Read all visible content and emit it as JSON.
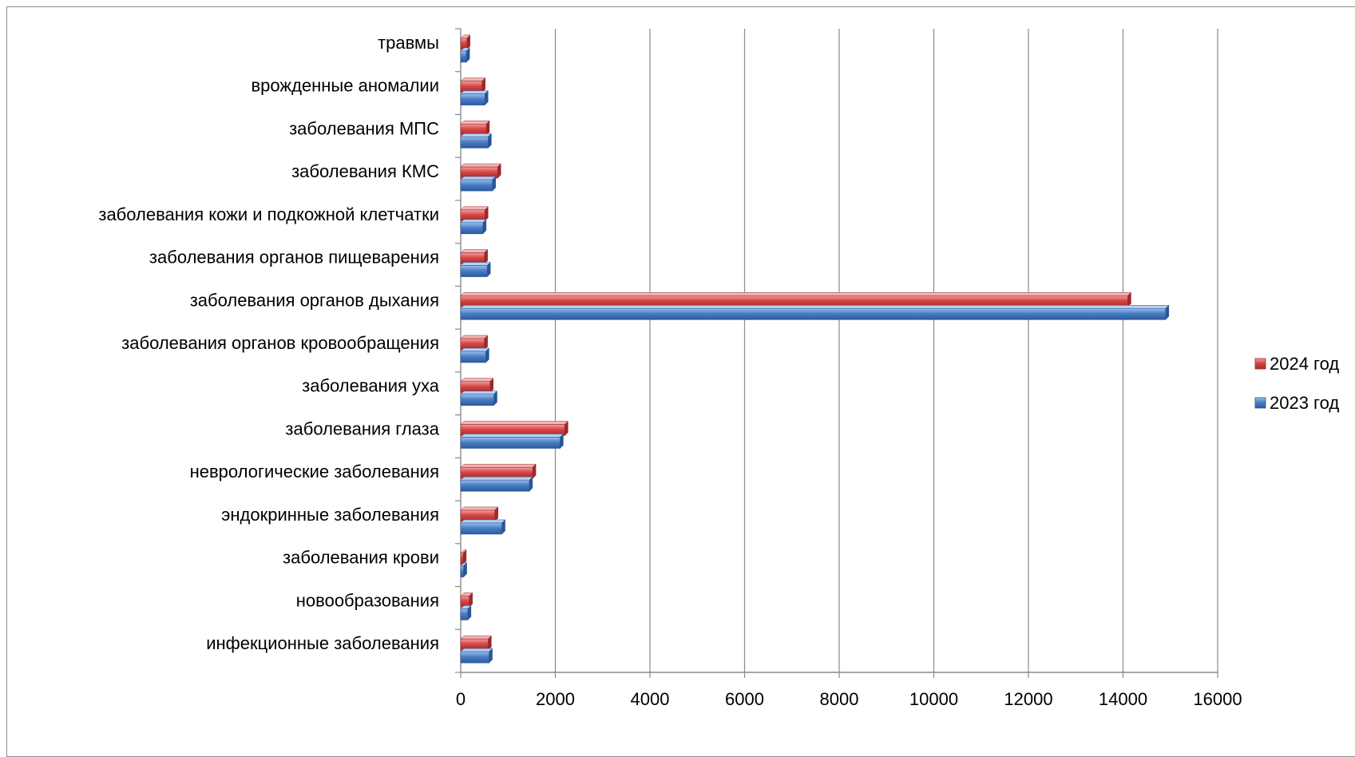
{
  "chart_data": {
    "type": "bar",
    "orientation": "horizontal",
    "categories": [
      "инфекционные заболевания",
      "новообразования",
      "заболевания крови",
      "эндокринные заболевания",
      "неврологические заболевания",
      "заболевания глаза",
      "заболевания уха",
      "заболевания органов кровообращения",
      "заболевания органов дыхания",
      "заболевания органов пищеварения",
      "заболевания кожи и подкожной клетчатки",
      "заболевания КМС",
      "заболевания МПС",
      "врожденные аномалии",
      "травмы"
    ],
    "series": [
      {
        "name": "2023 год",
        "color": "#4a7ec3",
        "values": [
          600,
          150,
          60,
          870,
          1450,
          2100,
          700,
          530,
          14900,
          560,
          470,
          670,
          580,
          510,
          120
        ]
      },
      {
        "name": "2024 год",
        "color": "#d64545",
        "values": [
          580,
          180,
          50,
          720,
          1520,
          2200,
          620,
          500,
          14100,
          500,
          510,
          780,
          540,
          450,
          130
        ]
      }
    ],
    "xlim": [
      0,
      16000
    ],
    "xticks": [
      0,
      2000,
      4000,
      6000,
      8000,
      10000,
      12000,
      14000,
      16000
    ],
    "grid": true,
    "legend": "right",
    "title": "",
    "xlabel": "",
    "ylabel": ""
  }
}
